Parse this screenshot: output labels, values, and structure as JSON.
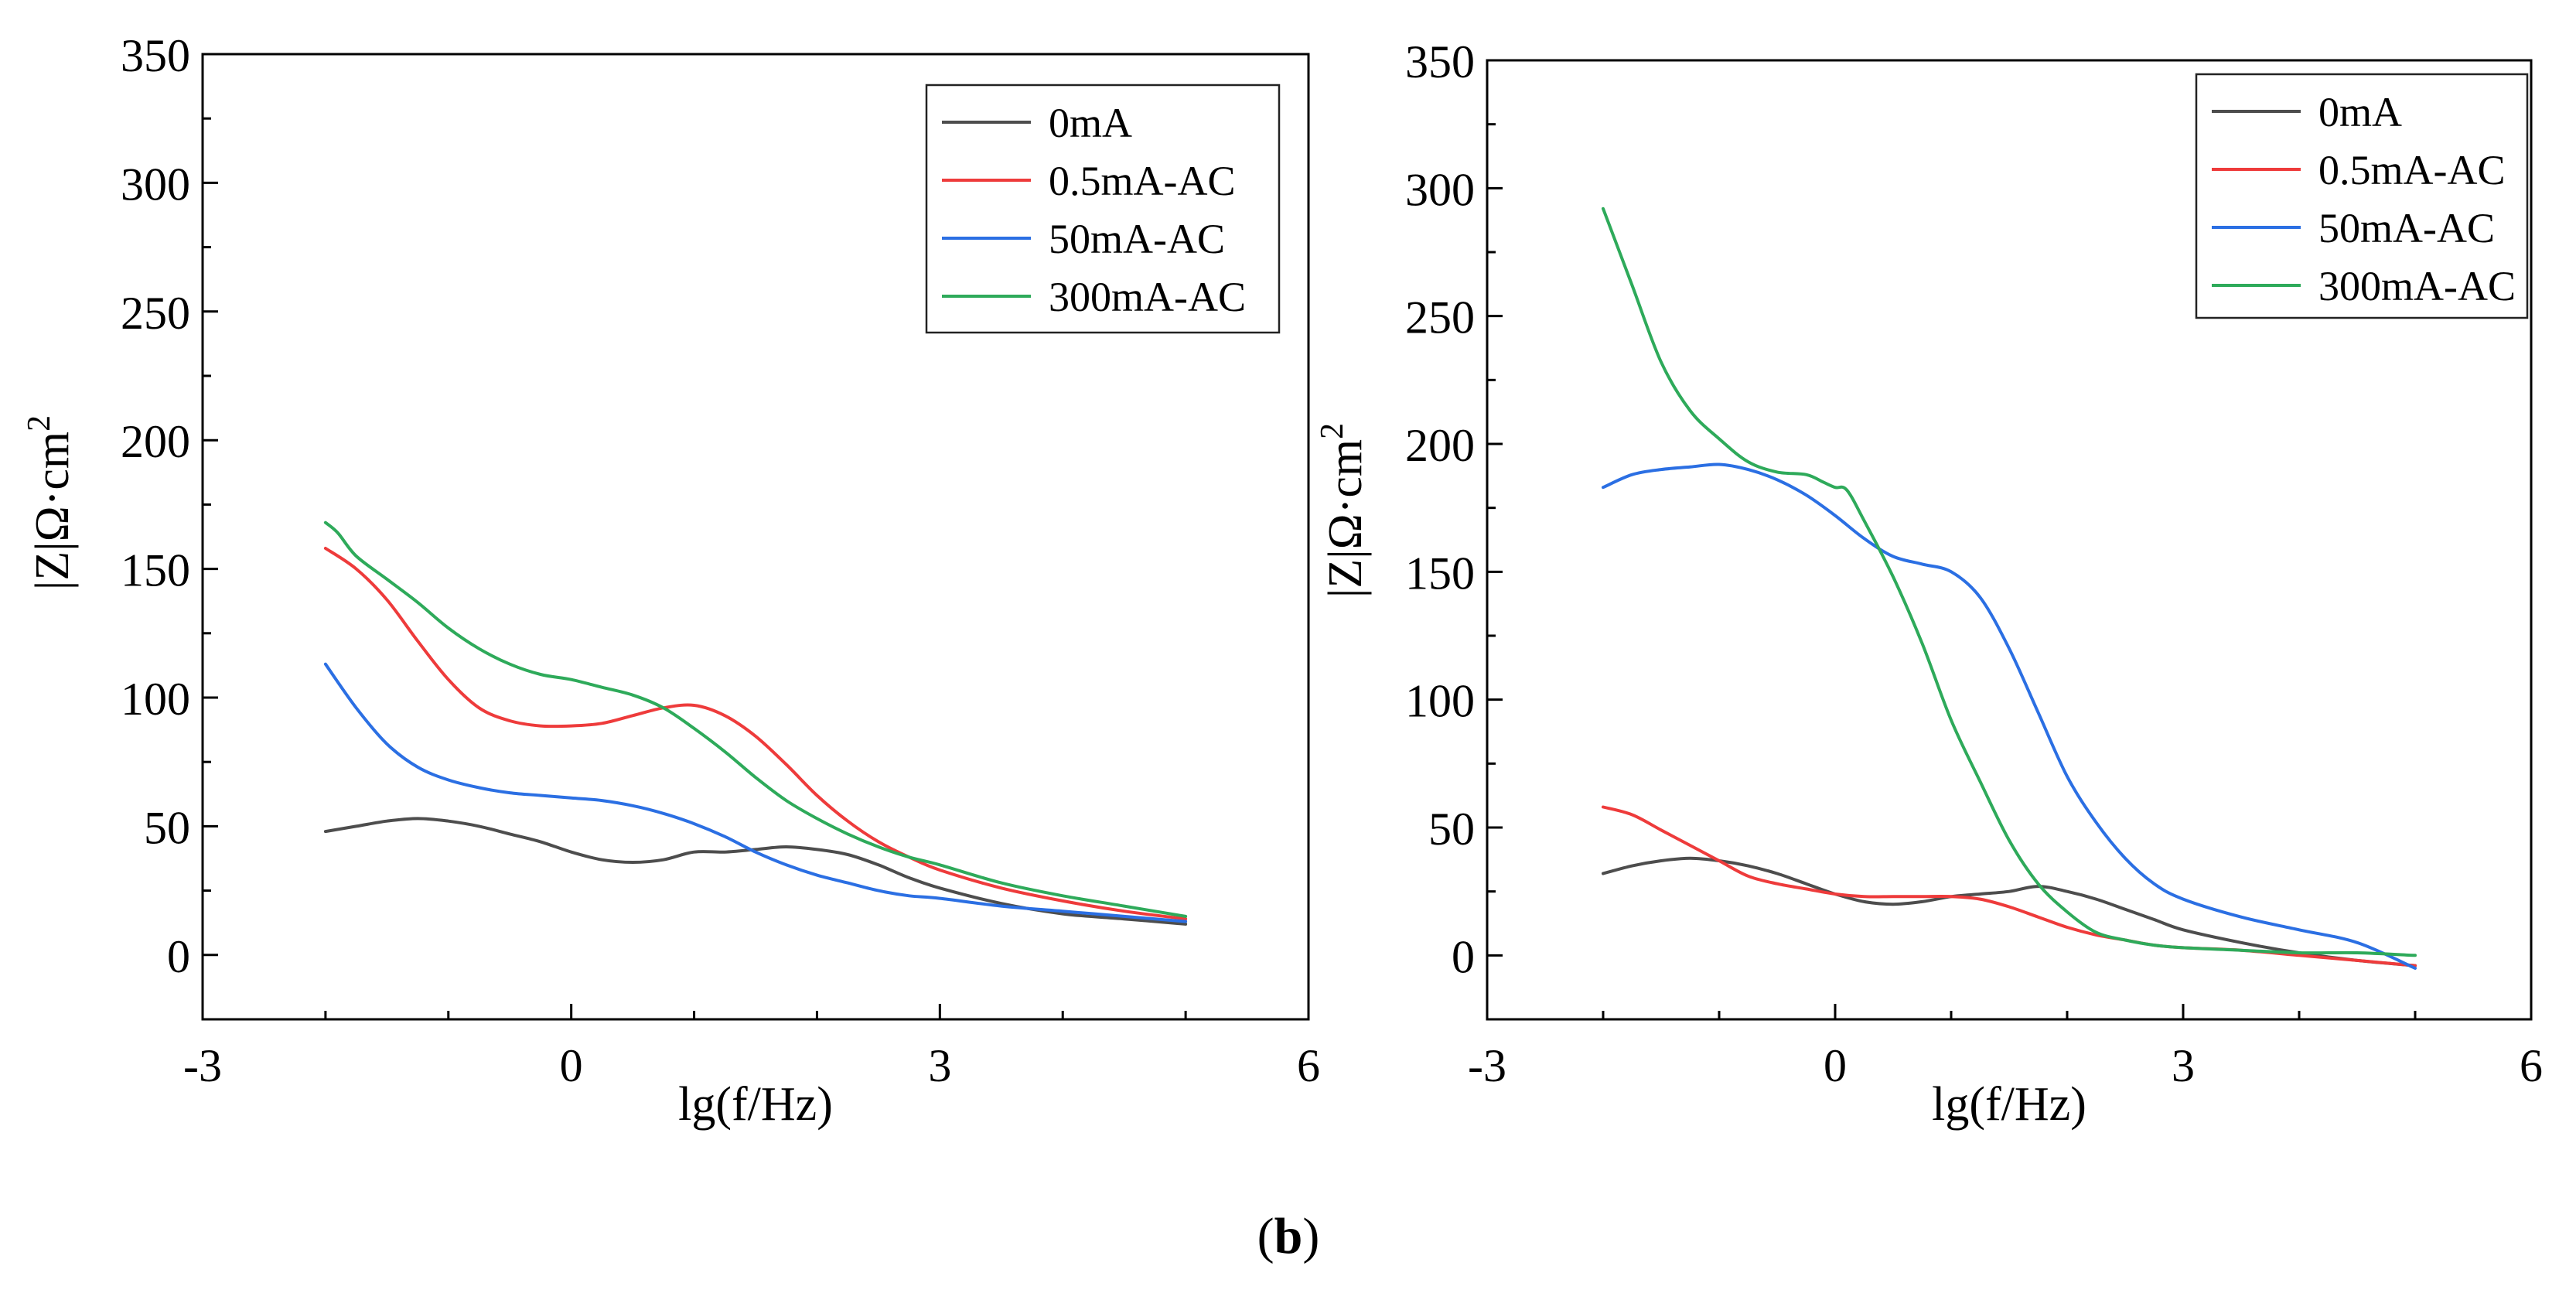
{
  "figure": {
    "caption_open": "(",
    "caption_letter": "b",
    "caption_close": ")"
  },
  "colors": {
    "0mA": "#4d4d4d",
    "0.5mA-AC": "#ee3b3b",
    "50mA-AC": "#2b6fe3",
    "300mA-AC": "#2eaa5a",
    "axis": "#000000"
  },
  "chart_data": [
    {
      "type": "line",
      "title": "",
      "xlabel": "lg(f/Hz)",
      "ylabel": "|Z|Ω·cm",
      "ylabel_sup": "2",
      "xlim": [
        -3,
        6
      ],
      "ylim": [
        -25,
        350
      ],
      "xticks": [
        -3,
        0,
        3,
        6
      ],
      "yticks": [
        0,
        50,
        100,
        150,
        200,
        250,
        300,
        350
      ],
      "legend": "top-right",
      "series": [
        {
          "name": "0mA",
          "x": [
            -2,
            -1.75,
            -1.5,
            -1.25,
            -1,
            -0.75,
            -0.5,
            -0.25,
            0,
            0.25,
            0.5,
            0.75,
            1,
            1.25,
            1.5,
            1.75,
            2,
            2.25,
            2.5,
            2.75,
            3,
            3.5,
            4,
            4.5,
            5
          ],
          "y": [
            48,
            50,
            52,
            53,
            52,
            50,
            47,
            44,
            40,
            37,
            36,
            37,
            40,
            40,
            41,
            42,
            41,
            39,
            35,
            30,
            26,
            20,
            16,
            14,
            12
          ]
        },
        {
          "name": "0.5mA-AC",
          "x": [
            -2,
            -1.75,
            -1.5,
            -1.25,
            -1,
            -0.75,
            -0.5,
            -0.25,
            0,
            0.25,
            0.5,
            0.75,
            1,
            1.25,
            1.5,
            1.75,
            2,
            2.25,
            2.5,
            2.75,
            3,
            3.5,
            4,
            4.5,
            5
          ],
          "y": [
            158,
            150,
            138,
            122,
            107,
            96,
            91,
            89,
            89,
            90,
            93,
            96,
            97,
            93,
            85,
            74,
            62,
            52,
            44,
            38,
            33,
            26,
            21,
            17,
            14
          ]
        },
        {
          "name": "50mA-AC",
          "x": [
            -2,
            -1.75,
            -1.5,
            -1.25,
            -1,
            -0.75,
            -0.5,
            -0.25,
            0,
            0.25,
            0.5,
            0.75,
            1,
            1.25,
            1.5,
            1.75,
            2,
            2.25,
            2.5,
            2.75,
            3,
            3.5,
            4,
            4.5,
            5
          ],
          "y": [
            113,
            96,
            82,
            73,
            68,
            65,
            63,
            62,
            61,
            60,
            58,
            55,
            51,
            46,
            40,
            35,
            31,
            28,
            25,
            23,
            22,
            19,
            17,
            15,
            13
          ]
        },
        {
          "name": "300mA-AC",
          "x": [
            -2,
            -1.9,
            -1.75,
            -1.5,
            -1.25,
            -1,
            -0.75,
            -0.5,
            -0.25,
            0,
            0.25,
            0.5,
            0.75,
            1,
            1.25,
            1.5,
            1.75,
            2,
            2.25,
            2.5,
            2.75,
            3,
            3.5,
            4,
            4.5,
            5
          ],
          "y": [
            168,
            164,
            155,
            146,
            137,
            127,
            119,
            113,
            109,
            107,
            104,
            101,
            96,
            88,
            79,
            69,
            60,
            53,
            47,
            42,
            38,
            35,
            28,
            23,
            19,
            15
          ]
        }
      ]
    },
    {
      "type": "line",
      "title": "",
      "xlabel": "lg(f/Hz)",
      "ylabel": "|Z|Ω·cm",
      "ylabel_sup": "2",
      "xlim": [
        -3,
        6
      ],
      "ylim": [
        -25,
        350
      ],
      "xticks": [
        -3,
        0,
        3,
        6
      ],
      "yticks": [
        0,
        50,
        100,
        150,
        200,
        250,
        300,
        350
      ],
      "legend": "top-right",
      "series": [
        {
          "name": "0mA",
          "x": [
            -2,
            -1.75,
            -1.5,
            -1.25,
            -1,
            -0.75,
            -0.5,
            -0.25,
            0,
            0.25,
            0.5,
            0.75,
            1,
            1.25,
            1.5,
            1.75,
            2,
            2.25,
            2.5,
            2.75,
            3,
            3.5,
            4,
            4.5,
            5
          ],
          "y": [
            32,
            35,
            37,
            38,
            37,
            35,
            32,
            28,
            24,
            21,
            20,
            21,
            23,
            24,
            25,
            27,
            25,
            22,
            18,
            14,
            10,
            5,
            1,
            -2,
            -4
          ]
        },
        {
          "name": "0.5mA-AC",
          "x": [
            -2,
            -1.75,
            -1.5,
            -1.25,
            -1,
            -0.75,
            -0.5,
            -0.25,
            0,
            0.25,
            0.5,
            0.75,
            1,
            1.25,
            1.5,
            1.75,
            2,
            2.25,
            2.5,
            2.75,
            3,
            3.5,
            4,
            4.5,
            5
          ],
          "y": [
            58,
            55,
            49,
            43,
            37,
            31,
            28,
            26,
            24,
            23,
            23,
            23,
            23,
            22,
            19,
            15,
            11,
            8,
            6,
            4,
            3,
            2,
            0,
            -2,
            -4
          ]
        },
        {
          "name": "50mA-AC",
          "x": [
            -2,
            -1.75,
            -1.5,
            -1.25,
            -1,
            -0.75,
            -0.5,
            -0.25,
            0,
            0.25,
            0.5,
            0.75,
            1,
            1.25,
            1.5,
            1.75,
            2,
            2.25,
            2.5,
            2.75,
            3,
            3.5,
            4,
            4.5,
            5
          ],
          "y": [
            183,
            188,
            190,
            191,
            192,
            190,
            186,
            180,
            172,
            163,
            156,
            153,
            150,
            140,
            120,
            95,
            70,
            52,
            38,
            28,
            22,
            15,
            10,
            5,
            -5
          ]
        },
        {
          "name": "300mA-AC",
          "x": [
            -2,
            -1.75,
            -1.5,
            -1.25,
            -1,
            -0.75,
            -0.5,
            -0.25,
            -0.1,
            0,
            0.1,
            0.25,
            0.5,
            0.75,
            1,
            1.25,
            1.5,
            1.75,
            2,
            2.25,
            2.5,
            2.75,
            3,
            3.5,
            4,
            4.5,
            5
          ],
          "y": [
            292,
            262,
            232,
            213,
            202,
            193,
            189,
            188,
            185,
            183,
            182,
            170,
            148,
            122,
            92,
            68,
            45,
            28,
            17,
            9,
            6,
            4,
            3,
            2,
            1,
            1,
            0
          ]
        }
      ]
    }
  ]
}
